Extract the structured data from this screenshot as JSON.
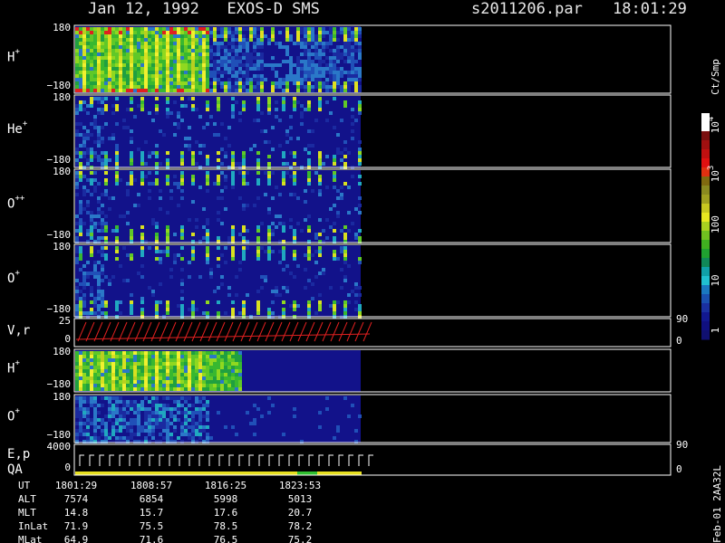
{
  "header": {
    "title": "Jan 12, 1992   EXOS-D SMS",
    "file": "s2011206.par",
    "time": "18:01:29"
  },
  "panels": [
    {
      "label": "H",
      "sup": "+",
      "top": "180",
      "bottom": "−180"
    },
    {
      "label": "He",
      "sup": "+",
      "top": "180",
      "bottom": "−180"
    },
    {
      "label": "O",
      "sup": "++",
      "top": "180",
      "bottom": "−180"
    },
    {
      "label": "O",
      "sup": "+",
      "top": "180",
      "bottom": "−180"
    },
    {
      "label": "V,r",
      "top": "25",
      "bottom": "0",
      "right_top": "90",
      "right_bottom": "0"
    },
    {
      "label": "H",
      "sup": "+",
      "top": "180",
      "bottom": "−180"
    },
    {
      "label": "O",
      "sup": "+",
      "top": "180",
      "bottom": "−180"
    },
    {
      "label": "E,p",
      "label2": "QA",
      "top": "4000",
      "bottom": "0",
      "right_top": "90",
      "right_bottom": "0"
    }
  ],
  "colorbar": {
    "unit": "Ct/Smp",
    "ticks": [
      {
        "base": "1"
      },
      {
        "base": "10"
      },
      {
        "base": "100"
      },
      {
        "base": "10",
        "exp": "3"
      },
      {
        "base": "10",
        "exp": "4"
      }
    ]
  },
  "footer": {
    "rows": [
      [
        "UT",
        "1801:29",
        "1808:57",
        "1816:25",
        "1823:53"
      ],
      [
        "ALT",
        "7574",
        "6854",
        "5998",
        "5013"
      ],
      [
        "MLT",
        "14.8",
        "15.7",
        "17.6",
        "20.7"
      ],
      [
        "InLat",
        "71.9",
        "75.5",
        "78.5",
        "78.2"
      ],
      [
        "MLat",
        "64.9",
        "71.6",
        "76.5",
        "75.2"
      ]
    ]
  },
  "side_note": "Feb-01 2AA32L"
}
